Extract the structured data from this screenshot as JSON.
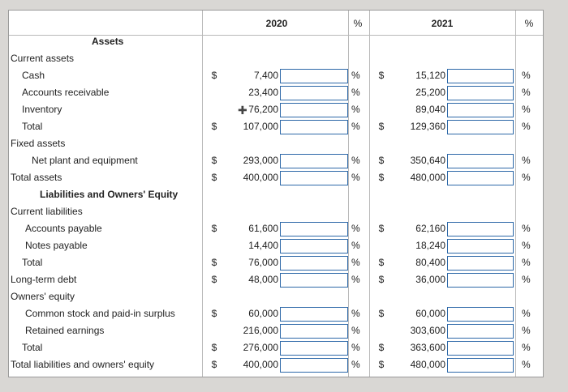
{
  "header": {
    "year1": "2020",
    "pct1": "%",
    "year2": "2021",
    "pct2": "%"
  },
  "rows": [
    {
      "label": "Assets",
      "type": "section"
    },
    {
      "label": "Current assets",
      "type": "group"
    },
    {
      "label": "Cash",
      "type": "item",
      "d1": "$",
      "v1": "7,400",
      "p1": "%",
      "d2": "$",
      "v2": "15,120",
      "p2": "%"
    },
    {
      "label": "Accounts receivable",
      "type": "item",
      "d1": "",
      "v1": "23,400",
      "p1": "%",
      "d2": "",
      "v2": "25,200",
      "p2": "%"
    },
    {
      "label": "Inventory",
      "type": "item",
      "d1": "",
      "v1": "76,200",
      "p1": "%",
      "d2": "",
      "v2": "89,040",
      "p2": "%"
    },
    {
      "label": "Total",
      "type": "item",
      "d1": "$",
      "v1": "107,000",
      "p1": "%",
      "d2": "$",
      "v2": "129,360",
      "p2": "%"
    },
    {
      "label": "Fixed assets",
      "type": "group"
    },
    {
      "label": "Net plant and equipment",
      "type": "item",
      "d1": "$",
      "v1": "293,000",
      "p1": "%",
      "d2": "$",
      "v2": "350,640",
      "p2": "%"
    },
    {
      "label": "Total assets",
      "type": "group",
      "d1": "$",
      "v1": "400,000",
      "p1": "%",
      "d2": "$",
      "v2": "480,000",
      "p2": "%"
    },
    {
      "label": "Liabilities and Owners' Equity",
      "type": "section"
    },
    {
      "label": "Current liabilities",
      "type": "group"
    },
    {
      "label": "Accounts payable",
      "type": "item",
      "d1": "$",
      "v1": "61,600",
      "p1": "%",
      "d2": "$",
      "v2": "62,160",
      "p2": "%"
    },
    {
      "label": "Notes payable",
      "type": "item",
      "d1": "",
      "v1": "14,400",
      "p1": "%",
      "d2": "",
      "v2": "18,240",
      "p2": "%"
    },
    {
      "label": "Total",
      "type": "item",
      "d1": "$",
      "v1": "76,000",
      "p1": "%",
      "d2": "$",
      "v2": "80,400",
      "p2": "%"
    },
    {
      "label": "Long-term debt",
      "type": "group",
      "d1": "$",
      "v1": "48,000",
      "p1": "%",
      "d2": "$",
      "v2": "36,000",
      "p2": "%"
    },
    {
      "label": "Owners' equity",
      "type": "group"
    },
    {
      "label": "Common stock and paid-in surplus",
      "type": "item",
      "d1": "$",
      "v1": "60,000",
      "p1": "%",
      "d2": "$",
      "v2": "60,000",
      "p2": "%"
    },
    {
      "label": "Retained earnings",
      "type": "item",
      "d1": "",
      "v1": "216,000",
      "p1": "%",
      "d2": "",
      "v2": "303,600",
      "p2": "%"
    },
    {
      "label": "Total",
      "type": "item",
      "d1": "$",
      "v1": "276,000",
      "p1": "%",
      "d2": "$",
      "v2": "363,600",
      "p2": "%"
    },
    {
      "label": "Total liabilities and owners' equity",
      "type": "group",
      "d1": "$",
      "v1": "400,000",
      "p1": "%",
      "d2": "$",
      "v2": "480,000",
      "p2": "%"
    }
  ]
}
